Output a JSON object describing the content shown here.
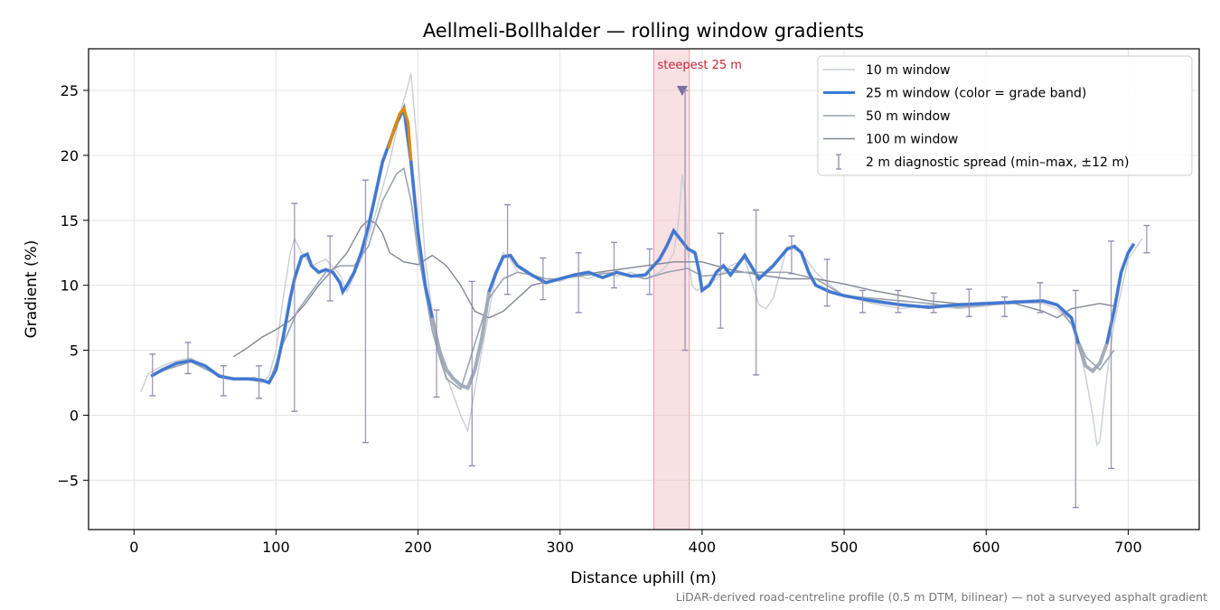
{
  "chart_data": {
    "type": "line",
    "title": "Aellmeli-Bollhalder — rolling window gradients",
    "xlabel": "Distance uphill (m)",
    "ylabel": "Gradient (%)",
    "footnote": "LiDAR-derived road-centreline profile (0.5 m DTM, bilinear) — not a surveyed asphalt gradient",
    "xlim": [
      -32,
      750
    ],
    "ylim": [
      -8.8,
      28.2
    ],
    "xticks": [
      0,
      100,
      200,
      300,
      400,
      500,
      600,
      700
    ],
    "yticks": [
      -5,
      0,
      5,
      10,
      15,
      20,
      25
    ],
    "grid": true,
    "legend_position": "top-right",
    "colors": {
      "w10": "#c9ced6",
      "w25_band_low": "#3b78d8",
      "w25_band_high": "#e08a0b",
      "w25_background": "#9aa4b2",
      "w50": "#9aa4b2",
      "w100": "#808894",
      "diag": "#8e86ad",
      "highlight": "#f2c6cc",
      "marker": "#7b6fa3"
    },
    "highlight": {
      "label": "steepest 25 m",
      "x_start": 366,
      "x_end": 391,
      "marker_x": 386,
      "marker_y": 25
    },
    "series": [
      {
        "name": "10 m window",
        "x": [
          5,
          10,
          15,
          20,
          30,
          40,
          50,
          60,
          70,
          80,
          90,
          95,
          100,
          105,
          110,
          113,
          118,
          125,
          135,
          145,
          150,
          160,
          170,
          180,
          185,
          188,
          192,
          195,
          200,
          205,
          210,
          215,
          220,
          225,
          230,
          235,
          240,
          245,
          250,
          255,
          260,
          265,
          270,
          280,
          290,
          300,
          310,
          320,
          330,
          340,
          350,
          360,
          370,
          375,
          380,
          383,
          386,
          388,
          390,
          393,
          396,
          400,
          410,
          420,
          430,
          440,
          445,
          450,
          455,
          460,
          470,
          480,
          490,
          500,
          520,
          540,
          560,
          580,
          600,
          620,
          640,
          650,
          660,
          665,
          670,
          675,
          678,
          680,
          685,
          690,
          700,
          710
        ],
        "y": [
          1.8,
          3.2,
          3.5,
          3.8,
          4.2,
          4.4,
          3.8,
          3.0,
          2.7,
          2.8,
          2.5,
          3.0,
          5.0,
          9.0,
          12.5,
          13.6,
          12.5,
          11.5,
          12.0,
          10.8,
          9.5,
          12.0,
          15.5,
          19.5,
          22.0,
          23.5,
          25.0,
          26.3,
          20.0,
          12.0,
          8.0,
          5.0,
          3.0,
          1.5,
          0.0,
          -1.2,
          2.0,
          5.0,
          8.0,
          11.0,
          12.5,
          12.0,
          11.0,
          10.8,
          10.5,
          10.3,
          10.8,
          10.5,
          11.0,
          10.7,
          11.0,
          10.5,
          11.0,
          11.5,
          12.5,
          14.5,
          18.5,
          17.0,
          12.5,
          10.0,
          9.6,
          9.8,
          10.5,
          11.5,
          12.0,
          8.5,
          8.2,
          9.0,
          11.0,
          13.0,
          12.5,
          11.0,
          10.0,
          9.2,
          8.6,
          8.2,
          8.5,
          8.2,
          8.4,
          8.7,
          8.6,
          8.2,
          7.0,
          5.5,
          3.0,
          0.0,
          -2.3,
          -2.0,
          3.0,
          7.0,
          12.0,
          13.6
        ]
      },
      {
        "name": "25 m window (color = grade band)",
        "x": [
          12,
          20,
          30,
          40,
          50,
          60,
          70,
          80,
          90,
          95,
          100,
          105,
          110,
          113,
          118,
          122,
          125,
          130,
          135,
          140,
          145,
          147,
          150,
          155,
          160,
          165,
          170,
          175,
          180,
          185,
          190,
          195,
          200,
          205,
          210,
          215,
          220,
          225,
          230,
          235,
          240,
          245,
          250,
          255,
          260,
          265,
          270,
          280,
          290,
          300,
          310,
          320,
          330,
          340,
          350,
          360,
          370,
          375,
          380,
          385,
          390,
          395,
          398,
          400,
          405,
          410,
          415,
          420,
          430,
          440,
          450,
          460,
          465,
          470,
          475,
          480,
          490,
          500,
          520,
          540,
          560,
          580,
          600,
          620,
          640,
          650,
          660,
          665,
          670,
          675,
          680,
          685,
          690,
          695,
          700,
          704
        ],
        "y": [
          3.0,
          3.5,
          4.0,
          4.2,
          3.8,
          3.0,
          2.8,
          2.8,
          2.7,
          2.5,
          3.5,
          6.0,
          9.0,
          10.5,
          12.2,
          12.4,
          11.5,
          11.0,
          11.2,
          11.0,
          10.2,
          9.5,
          10.0,
          11.0,
          12.5,
          14.5,
          17.0,
          19.5,
          21.0,
          22.5,
          23.6,
          19.5,
          14.0,
          10.0,
          7.5,
          5.0,
          3.5,
          2.8,
          2.3,
          2.1,
          3.5,
          6.0,
          9.5,
          11.0,
          12.2,
          12.3,
          11.5,
          10.8,
          10.2,
          10.5,
          10.8,
          11.0,
          10.6,
          11.0,
          10.7,
          10.8,
          12.0,
          13.0,
          14.2,
          13.5,
          12.8,
          12.5,
          11.0,
          9.6,
          10.0,
          11.0,
          11.5,
          10.8,
          12.3,
          10.5,
          11.5,
          12.8,
          13.0,
          12.5,
          11.0,
          10.0,
          9.5,
          9.2,
          8.8,
          8.5,
          8.3,
          8.5,
          8.6,
          8.7,
          8.8,
          8.5,
          7.5,
          5.5,
          3.8,
          3.4,
          4.0,
          5.5,
          8.0,
          11.0,
          12.5,
          13.2
        ]
      },
      {
        "name": "50 m window",
        "x": [
          12,
          25,
          40,
          55,
          70,
          85,
          95,
          105,
          115,
          125,
          135,
          145,
          155,
          165,
          175,
          185,
          190,
          195,
          200,
          205,
          210,
          215,
          220,
          230,
          240,
          250,
          260,
          270,
          280,
          290,
          300,
          320,
          340,
          360,
          375,
          385,
          390,
          395,
          400,
          410,
          420,
          440,
          460,
          480,
          500,
          520,
          540,
          560,
          580,
          600,
          620,
          640,
          650,
          660,
          670,
          680,
          690
        ],
        "y": [
          3.0,
          3.6,
          4.1,
          3.3,
          2.8,
          2.9,
          2.5,
          5.5,
          8.0,
          9.5,
          11.0,
          11.5,
          11.5,
          13.0,
          16.5,
          18.6,
          19.0,
          16.5,
          12.5,
          9.5,
          6.5,
          4.5,
          2.8,
          2.0,
          5.5,
          9.0,
          10.5,
          11.0,
          10.8,
          10.5,
          10.5,
          10.8,
          11.0,
          10.5,
          11.0,
          11.2,
          11.3,
          11.0,
          10.7,
          10.8,
          11.0,
          11.0,
          11.0,
          10.5,
          9.2,
          9.0,
          8.8,
          8.6,
          8.3,
          8.5,
          8.8,
          8.8,
          8.5,
          7.0,
          4.5,
          3.5,
          5.0
        ]
      },
      {
        "name": "100 m window",
        "x": [
          70,
          80,
          90,
          100,
          110,
          120,
          130,
          140,
          150,
          160,
          165,
          170,
          175,
          180,
          190,
          200,
          210,
          220,
          230,
          240,
          250,
          260,
          270,
          280,
          300,
          320,
          340,
          360,
          380,
          400,
          420,
          440,
          460,
          480,
          500,
          520,
          540,
          560,
          580,
          600,
          620,
          640,
          650,
          660,
          680,
          690
        ],
        "y": [
          4.5,
          5.2,
          6.0,
          6.6,
          7.3,
          8.5,
          10.0,
          11.2,
          12.5,
          14.5,
          15.0,
          14.8,
          14.0,
          12.5,
          11.8,
          11.6,
          12.3,
          11.5,
          10.0,
          8.0,
          7.5,
          8.0,
          9.0,
          10.0,
          10.5,
          10.9,
          11.2,
          11.5,
          11.8,
          11.8,
          11.2,
          10.8,
          10.5,
          10.5,
          10.1,
          9.6,
          9.2,
          8.8,
          8.6,
          8.5,
          8.6,
          8.0,
          7.5,
          8.2,
          8.6,
          8.4
        ]
      }
    ],
    "band_high_segment": {
      "x": [
        179,
        183,
        187,
        190,
        193,
        195
      ],
      "y": [
        20.5,
        22.0,
        23.2,
        23.6,
        22.5,
        19.6
      ]
    },
    "diagnostic_spread": {
      "name": "2 m diagnostic spread (min–max, ±12 m)",
      "points": [
        {
          "x": 13,
          "min": 1.5,
          "max": 4.7
        },
        {
          "x": 38,
          "min": 3.2,
          "max": 5.6
        },
        {
          "x": 63,
          "min": 1.5,
          "max": 3.8
        },
        {
          "x": 88,
          "min": 1.3,
          "max": 3.8
        },
        {
          "x": 113,
          "min": 0.3,
          "max": 16.3
        },
        {
          "x": 138,
          "min": 8.8,
          "max": 13.8
        },
        {
          "x": 163,
          "min": -2.1,
          "max": 18.1
        },
        {
          "x": 213,
          "min": 1.4,
          "max": 8.1
        },
        {
          "x": 238,
          "min": -3.9,
          "max": 10.3
        },
        {
          "x": 263,
          "min": 9.3,
          "max": 16.2
        },
        {
          "x": 288,
          "min": 8.9,
          "max": 12.1
        },
        {
          "x": 313,
          "min": 7.9,
          "max": 12.5
        },
        {
          "x": 338,
          "min": 9.8,
          "max": 13.3
        },
        {
          "x": 363,
          "min": 9.3,
          "max": 12.8
        },
        {
          "x": 388,
          "min": 5.0,
          "max": 25.0
        },
        {
          "x": 413,
          "min": 6.7,
          "max": 14.0
        },
        {
          "x": 438,
          "min": 3.1,
          "max": 15.8
        },
        {
          "x": 463,
          "min": 10.9,
          "max": 13.8
        },
        {
          "x": 488,
          "min": 8.4,
          "max": 12.0
        },
        {
          "x": 513,
          "min": 7.9,
          "max": 9.6
        },
        {
          "x": 538,
          "min": 7.9,
          "max": 9.6
        },
        {
          "x": 563,
          "min": 7.9,
          "max": 9.4
        },
        {
          "x": 588,
          "min": 7.6,
          "max": 9.7
        },
        {
          "x": 613,
          "min": 7.6,
          "max": 9.1
        },
        {
          "x": 638,
          "min": 7.9,
          "max": 10.2
        },
        {
          "x": 663,
          "min": -7.1,
          "max": 9.6
        },
        {
          "x": 688,
          "min": -4.1,
          "max": 13.4
        },
        {
          "x": 713,
          "min": 12.5,
          "max": 14.6
        }
      ]
    }
  }
}
